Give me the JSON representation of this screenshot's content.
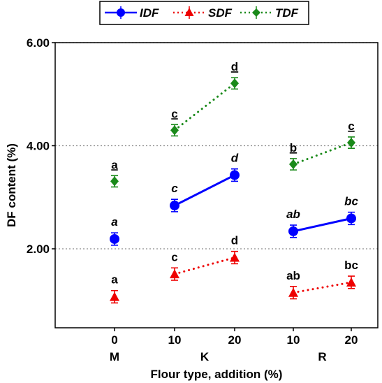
{
  "chart_data": {
    "type": "scatter",
    "ylabel": "DF content (%)",
    "xlabel": "Flour type, addition (%)",
    "ylim": [
      0.0,
      6.0
    ],
    "y_ticks": [
      2.0,
      4.0,
      6.0
    ],
    "y_tick_labels": [
      "2.00",
      "4.00",
      "6.00"
    ],
    "grid": "horizontal dotted at y ticks",
    "legend_position": "top-center",
    "x_ticks": [
      "0",
      "10",
      "20",
      "10",
      "20"
    ],
    "groups": [
      {
        "label": "M",
        "ticks": [
          0
        ]
      },
      {
        "label": "K",
        "ticks": [
          1,
          2
        ]
      },
      {
        "label": "R",
        "ticks": [
          3,
          4
        ]
      }
    ],
    "series": [
      {
        "name": "IDF",
        "color": "#0000ff",
        "marker": "circle",
        "line_style": "solid",
        "label_style": "italic",
        "values": [
          2.19,
          2.84,
          3.43,
          2.34,
          2.59
        ],
        "errors": [
          0.12,
          0.12,
          0.12,
          0.12,
          0.12
        ],
        "letters": [
          "a",
          "c",
          "d",
          "ab",
          "bc"
        ],
        "connect": [
          [
            1,
            2
          ],
          [
            3,
            4
          ]
        ]
      },
      {
        "name": "SDF",
        "color": "#ee0000",
        "marker": "triangle",
        "line_style": "dotted",
        "label_style": "normal",
        "values": [
          1.07,
          1.51,
          1.83,
          1.15,
          1.35
        ],
        "errors": [
          0.12,
          0.12,
          0.12,
          0.12,
          0.12
        ],
        "letters": [
          "a",
          "c",
          "d",
          "ab",
          "bc"
        ],
        "connect": [
          [
            1,
            2
          ],
          [
            3,
            4
          ]
        ]
      },
      {
        "name": "TDF",
        "color": "#1a8a1a",
        "marker": "diamond",
        "line_style": "dotted",
        "label_style": "bold-underline",
        "values": [
          3.31,
          4.3,
          5.21,
          3.64,
          4.06
        ],
        "errors": [
          0.11,
          0.11,
          0.11,
          0.11,
          0.11
        ],
        "letters": [
          "a",
          "c",
          "d",
          "b",
          "c"
        ],
        "connect": [
          [
            1,
            2
          ],
          [
            3,
            4
          ]
        ]
      }
    ]
  }
}
